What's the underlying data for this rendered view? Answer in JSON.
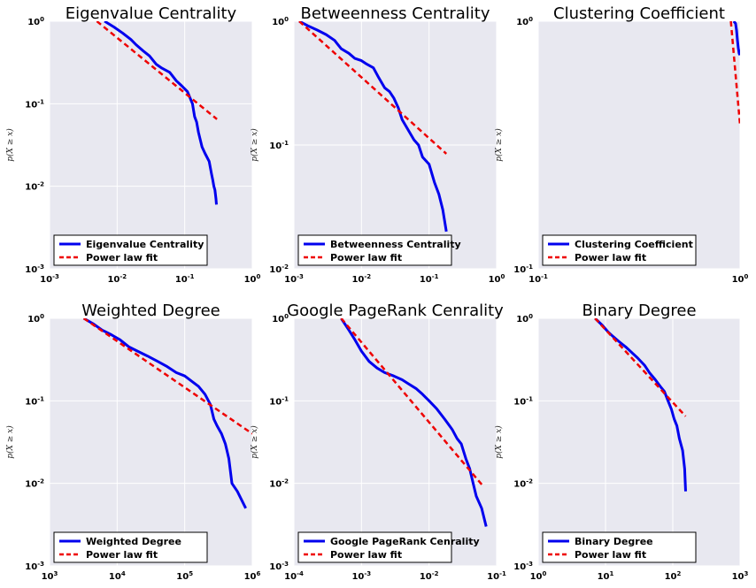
{
  "colors": {
    "plot_bg": "#e8e8f0",
    "grid": "#ffffff",
    "data_line": "#0000ee",
    "fit_line": "#ee0000"
  },
  "chart_data": [
    {
      "type": "line",
      "title": "Eigenvalue Centrality",
      "xlabel": "",
      "ylabel": "p(X ≥ x)",
      "xscale": "log",
      "yscale": "log",
      "xlim": [
        0.001,
        1
      ],
      "ylim": [
        0.001,
        1
      ],
      "xticks": [
        {
          "v": 0.001,
          "b": "10",
          "e": "-3"
        },
        {
          "v": 0.01,
          "b": "10",
          "e": "-2"
        },
        {
          "v": 0.1,
          "b": "10",
          "e": "-1"
        },
        {
          "v": 1,
          "b": "10",
          "e": "0"
        }
      ],
      "yticks": [
        {
          "v": 0.001,
          "b": "10",
          "e": "-3"
        },
        {
          "v": 0.01,
          "b": "10",
          "e": "-2"
        },
        {
          "v": 0.1,
          "b": "10",
          "e": "-1"
        },
        {
          "v": 1,
          "b": "10",
          "e": "0"
        }
      ],
      "legend": "lower-left",
      "grid": true,
      "series": [
        {
          "name": "Eigenvalue Centrality",
          "style": "solid",
          "x": [
            0.0065,
            0.009,
            0.012,
            0.016,
            0.019,
            0.024,
            0.03,
            0.038,
            0.046,
            0.06,
            0.075,
            0.09,
            0.11,
            0.13,
            0.14,
            0.15,
            0.16,
            0.18,
            0.2,
            0.23,
            0.25,
            0.26,
            0.27,
            0.28,
            0.29,
            0.295
          ],
          "y": [
            1.0,
            0.85,
            0.72,
            0.6,
            0.52,
            0.44,
            0.38,
            0.3,
            0.27,
            0.24,
            0.19,
            0.165,
            0.14,
            0.1,
            0.07,
            0.06,
            0.045,
            0.03,
            0.025,
            0.02,
            0.014,
            0.012,
            0.01,
            0.009,
            0.007,
            0.006
          ]
        },
        {
          "name": "Power law fit",
          "style": "dashed",
          "x": [
            0.005,
            0.3
          ],
          "y": [
            1.0,
            0.065
          ]
        }
      ]
    },
    {
      "type": "line",
      "title": "Betweenness Centrality",
      "xlabel": "",
      "ylabel": "p(X ≥ x)",
      "xscale": "log",
      "yscale": "log",
      "xlim": [
        0.001,
        1
      ],
      "ylim": [
        0.01,
        1
      ],
      "xticks": [
        {
          "v": 0.001,
          "b": "10",
          "e": "-3"
        },
        {
          "v": 0.01,
          "b": "10",
          "e": "-2"
        },
        {
          "v": 0.1,
          "b": "10",
          "e": "-1"
        },
        {
          "v": 1,
          "b": "10",
          "e": "0"
        }
      ],
      "yticks": [
        {
          "v": 0.01,
          "b": "10",
          "e": "-2"
        },
        {
          "v": 0.1,
          "b": "10",
          "e": "-1"
        },
        {
          "v": 1,
          "b": "10",
          "e": "0"
        }
      ],
      "legend": "lower-left",
      "grid": true,
      "series": [
        {
          "name": "Betweenness Centrality",
          "style": "solid",
          "x": [
            0.0012,
            0.0016,
            0.0022,
            0.003,
            0.004,
            0.005,
            0.0065,
            0.008,
            0.01,
            0.012,
            0.015,
            0.018,
            0.022,
            0.026,
            0.03,
            0.035,
            0.04,
            0.05,
            0.06,
            0.07,
            0.08,
            0.1,
            0.12,
            0.14,
            0.16,
            0.18
          ],
          "y": [
            1.0,
            0.92,
            0.85,
            0.78,
            0.7,
            0.6,
            0.55,
            0.5,
            0.48,
            0.45,
            0.42,
            0.35,
            0.29,
            0.27,
            0.24,
            0.2,
            0.16,
            0.13,
            0.11,
            0.1,
            0.08,
            0.07,
            0.05,
            0.04,
            0.03,
            0.02
          ]
        },
        {
          "name": "Power law fit",
          "style": "dashed",
          "x": [
            0.0012,
            0.18
          ],
          "y": [
            1.0,
            0.085
          ]
        }
      ]
    },
    {
      "type": "line",
      "title": "Clustering Coefficient",
      "xlabel": "",
      "ylabel": "p(X ≥ x)",
      "xscale": "log",
      "yscale": "log",
      "xlim": [
        0.1,
        1
      ],
      "ylim": [
        0.1,
        1
      ],
      "xticks": [
        {
          "v": 0.1,
          "b": "10",
          "e": "-1"
        },
        {
          "v": 1,
          "b": "10",
          "e": "0"
        }
      ],
      "yticks": [
        {
          "v": 0.1,
          "b": "10",
          "e": "-1"
        },
        {
          "v": 1,
          "b": "10",
          "e": "0"
        }
      ],
      "legend": "lower-left",
      "grid": true,
      "series": [
        {
          "name": "Clustering Coefficient",
          "style": "solid",
          "x": [
            0.93,
            0.95,
            0.96,
            0.97,
            0.98,
            0.99,
            1.0
          ],
          "y": [
            1.0,
            0.98,
            0.92,
            0.84,
            0.78,
            0.74,
            0.73
          ]
        },
        {
          "name": "Power law fit",
          "style": "dashed",
          "x": [
            0.9,
            1.0
          ],
          "y": [
            1.0,
            0.38
          ]
        }
      ]
    },
    {
      "type": "line",
      "title": "Weighted Degree",
      "xlabel": "",
      "ylabel": "p(X ≥ x)",
      "xscale": "log",
      "yscale": "log",
      "xlim": [
        1000,
        1000000
      ],
      "ylim": [
        0.001,
        1
      ],
      "xticks": [
        {
          "v": 1000,
          "b": "10",
          "e": "3"
        },
        {
          "v": 10000,
          "b": "10",
          "e": "4"
        },
        {
          "v": 100000,
          "b": "10",
          "e": "5"
        },
        {
          "v": 1000000,
          "b": "10",
          "e": "6"
        }
      ],
      "yticks": [
        {
          "v": 0.001,
          "b": "10",
          "e": "-3"
        },
        {
          "v": 0.01,
          "b": "10",
          "e": "-2"
        },
        {
          "v": 0.1,
          "b": "10",
          "e": "-1"
        },
        {
          "v": 1,
          "b": "10",
          "e": "0"
        }
      ],
      "legend": "lower-left",
      "grid": true,
      "series": [
        {
          "name": "Weighted Degree",
          "style": "solid",
          "x": [
            3200,
            4500,
            6000,
            8000,
            11000,
            15000,
            20000,
            28000,
            40000,
            55000,
            75000,
            100000,
            130000,
            160000,
            200000,
            240000,
            270000,
            300000,
            350000,
            400000,
            450000,
            500000,
            600000,
            800000
          ],
          "y": [
            1.0,
            0.85,
            0.72,
            0.64,
            0.55,
            0.45,
            0.4,
            0.35,
            0.3,
            0.26,
            0.22,
            0.2,
            0.17,
            0.15,
            0.12,
            0.09,
            0.06,
            0.05,
            0.04,
            0.03,
            0.02,
            0.01,
            0.008,
            0.005
          ]
        },
        {
          "name": "Power law fit",
          "style": "dashed",
          "x": [
            3200,
            1000000
          ],
          "y": [
            1.0,
            0.04
          ]
        }
      ]
    },
    {
      "type": "line",
      "title": "Google PageRank Cenrality",
      "xlabel": "",
      "ylabel": "p(X ≥ x)",
      "xscale": "log",
      "yscale": "log",
      "xlim": [
        0.0001,
        0.1
      ],
      "ylim": [
        0.001,
        1
      ],
      "xticks": [
        {
          "v": 0.0001,
          "b": "10",
          "e": "-4"
        },
        {
          "v": 0.001,
          "b": "10",
          "e": "-3"
        },
        {
          "v": 0.01,
          "b": "10",
          "e": "-2"
        },
        {
          "v": 0.1,
          "b": "10",
          "e": "-1"
        }
      ],
      "yticks": [
        {
          "v": 0.001,
          "b": "10",
          "e": "-3"
        },
        {
          "v": 0.01,
          "b": "10",
          "e": "-2"
        },
        {
          "v": 0.1,
          "b": "10",
          "e": "-1"
        },
        {
          "v": 1,
          "b": "10",
          "e": "0"
        }
      ],
      "legend": "lower-left",
      "grid": true,
      "series": [
        {
          "name": "Google PageRank Cenrality",
          "style": "solid",
          "x": [
            0.0005,
            0.00065,
            0.0008,
            0.001,
            0.0013,
            0.0017,
            0.0022,
            0.003,
            0.004,
            0.005,
            0.0065,
            0.008,
            0.01,
            0.013,
            0.017,
            0.022,
            0.026,
            0.03,
            0.035,
            0.04,
            0.045,
            0.05,
            0.06,
            0.07
          ],
          "y": [
            1.0,
            0.72,
            0.55,
            0.4,
            0.3,
            0.25,
            0.22,
            0.2,
            0.18,
            0.16,
            0.14,
            0.12,
            0.1,
            0.08,
            0.06,
            0.045,
            0.035,
            0.03,
            0.02,
            0.015,
            0.01,
            0.007,
            0.005,
            0.003
          ]
        },
        {
          "name": "Power law fit",
          "style": "dashed",
          "x": [
            0.0005,
            0.065
          ],
          "y": [
            1.0,
            0.009
          ]
        }
      ]
    },
    {
      "type": "line",
      "title": "Binary Degree",
      "xlabel": "",
      "ylabel": "p(X ≥ x)",
      "xscale": "log",
      "yscale": "log",
      "xlim": [
        1,
        1000
      ],
      "ylim": [
        0.001,
        1
      ],
      "xticks": [
        {
          "v": 1,
          "b": "10",
          "e": "0"
        },
        {
          "v": 10,
          "b": "10",
          "e": "1"
        },
        {
          "v": 100,
          "b": "10",
          "e": "2"
        },
        {
          "v": 1000,
          "b": "10",
          "e": "3"
        }
      ],
      "yticks": [
        {
          "v": 0.001,
          "b": "10",
          "e": "-3"
        },
        {
          "v": 0.01,
          "b": "10",
          "e": "-2"
        },
        {
          "v": 0.1,
          "b": "10",
          "e": "-1"
        },
        {
          "v": 1,
          "b": "10",
          "e": "0"
        }
      ],
      "legend": "lower-left",
      "grid": true,
      "series": [
        {
          "name": "Binary Degree",
          "style": "solid",
          "x": [
            7,
            9,
            11,
            13,
            16,
            20,
            25,
            30,
            38,
            45,
            55,
            65,
            75,
            85,
            95,
            105,
            115,
            125,
            140,
            150,
            155
          ],
          "y": [
            1.0,
            0.82,
            0.68,
            0.6,
            0.52,
            0.45,
            0.38,
            0.33,
            0.27,
            0.22,
            0.18,
            0.15,
            0.13,
            0.1,
            0.08,
            0.06,
            0.05,
            0.035,
            0.025,
            0.015,
            0.008
          ]
        },
        {
          "name": "Power law fit",
          "style": "dashed",
          "x": [
            7,
            155
          ],
          "y": [
            1.0,
            0.065
          ]
        }
      ]
    }
  ]
}
